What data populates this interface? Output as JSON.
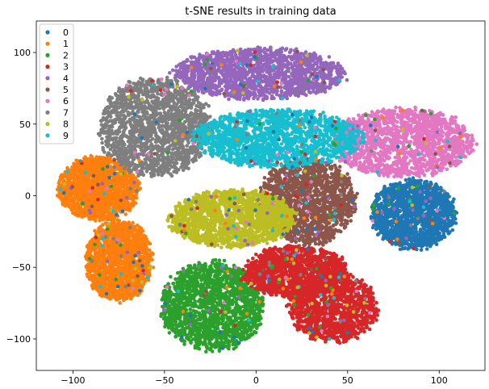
{
  "chart_data": {
    "type": "scatter",
    "title": "t-SNE results in training data",
    "xlabel": "",
    "ylabel": "",
    "xlim": [
      -120,
      125
    ],
    "ylim": [
      -122,
      122
    ],
    "xticks": [
      -100,
      -50,
      0,
      50,
      100
    ],
    "yticks": [
      -100,
      -50,
      0,
      50,
      100
    ],
    "grid": false,
    "legend_position": "top-left",
    "series": [
      {
        "name": "0",
        "color": "#1f77b4",
        "points_per_blob": 1500,
        "blobs": [
          [
            86,
            -13,
            23,
            24
          ]
        ]
      },
      {
        "name": "1",
        "color": "#ff7f0e",
        "points_per_blob": 1500,
        "blobs": [
          [
            -86,
            5,
            22,
            22
          ],
          [
            -75,
            -45,
            18,
            28
          ]
        ]
      },
      {
        "name": "2",
        "color": "#2ca02c",
        "points_per_blob": 1700,
        "blobs": [
          [
            -24,
            -77,
            28,
            31
          ]
        ]
      },
      {
        "name": "3",
        "color": "#d62728",
        "points_per_blob": 1300,
        "blobs": [
          [
            22,
            -53,
            28,
            18
          ],
          [
            42,
            -78,
            24,
            24
          ]
        ]
      },
      {
        "name": "4",
        "color": "#9467bd",
        "points_per_blob": 1700,
        "blobs": [
          [
            2,
            85,
            46,
            18
          ]
        ]
      },
      {
        "name": "5",
        "color": "#8c564b",
        "points_per_blob": 1500,
        "blobs": [
          [
            28,
            -4,
            26,
            30
          ]
        ]
      },
      {
        "name": "6",
        "color": "#e377c2",
        "points_per_blob": 1600,
        "blobs": [
          [
            80,
            37,
            38,
            24
          ]
        ]
      },
      {
        "name": "7",
        "color": "#7f7f7f",
        "points_per_blob": 1700,
        "blobs": [
          [
            -55,
            48,
            30,
            34
          ]
        ]
      },
      {
        "name": "8",
        "color": "#bcbd22",
        "points_per_blob": 1700,
        "blobs": [
          [
            -13,
            -16,
            34,
            20
          ]
        ]
      },
      {
        "name": "9",
        "color": "#17becf",
        "points_per_blob": 1700,
        "blobs": [
          [
            12,
            40,
            45,
            20
          ]
        ]
      }
    ]
  }
}
